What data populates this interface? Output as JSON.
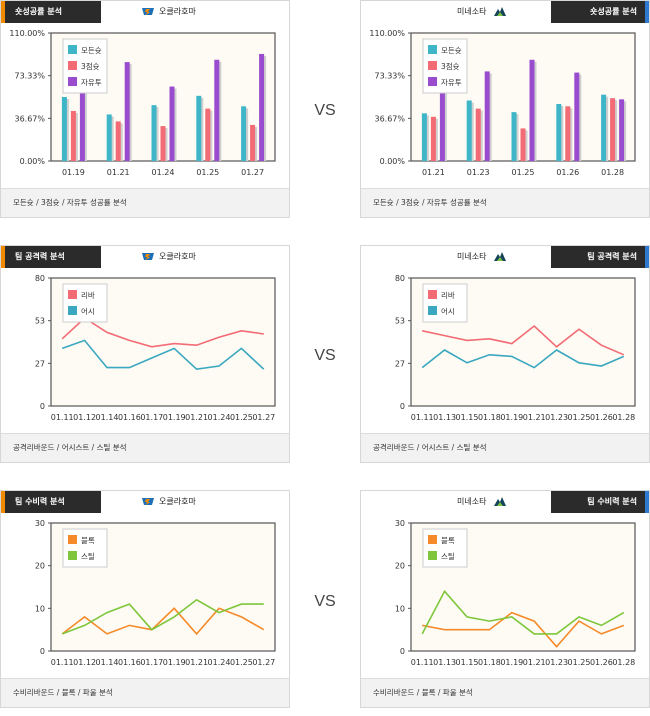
{
  "vs_label": "VS",
  "sections": [
    {
      "kind": "bar",
      "left": {
        "tab": "숏성공률 분석",
        "team": "오클라호마",
        "footer": "모든슛 / 3점슛 / 자유투 성공률 분석",
        "bar_color": "#f08a00",
        "logo": "thunder-logo-icon"
      },
      "right": {
        "tab": "숏성공률 분석",
        "team": "미네소타",
        "footer": "모든슛 / 3점슛 / 자유투 성공률 분석",
        "bar_color": "#2f7ad1",
        "logo": "timberwolves-logo-icon"
      }
    },
    {
      "kind": "line",
      "left": {
        "tab": "팀 공격력 분석",
        "team": "오클라호마",
        "footer": "공격리바운드 / 어시스트 / 스틸 분석",
        "bar_color": "#f08a00",
        "logo": "thunder-logo-icon"
      },
      "right": {
        "tab": "팀 공격력 분석",
        "team": "미네소타",
        "footer": "공격리바운드 / 어시스트 / 스틸 분석",
        "bar_color": "#2f7ad1",
        "logo": "timberwolves-logo-icon"
      }
    },
    {
      "kind": "line",
      "left": {
        "tab": "팀 수비력 분석",
        "team": "오클라호마",
        "footer": "수비리바운드 / 블록 / 파울 분석",
        "bar_color": "#f08a00",
        "logo": "thunder-logo-icon"
      },
      "right": {
        "tab": "팀 수비력 분석",
        "team": "미네소타",
        "footer": "수비리바운드 / 블록 / 파울 분석",
        "bar_color": "#2f7ad1",
        "logo": "timberwolves-logo-icon"
      }
    }
  ],
  "chart_data": [
    {
      "type": "bar",
      "panel": "okc-shooting",
      "categories": [
        "01.19",
        "01.21",
        "01.24",
        "01.25",
        "01.27"
      ],
      "yticks": [
        "0.00%",
        "36.67%",
        "73.33%",
        "110.00%"
      ],
      "ylim": [
        0,
        110
      ],
      "series": [
        {
          "name": "모든슛",
          "color": "#3fb5c8",
          "values": [
            55,
            40,
            48,
            56,
            47
          ]
        },
        {
          "name": "3점슛",
          "color": "#f26b75",
          "values": [
            43,
            34,
            30,
            45,
            31
          ]
        },
        {
          "name": "자유투",
          "color": "#9a4ccf",
          "values": [
            86,
            85,
            64,
            87,
            92
          ]
        }
      ],
      "legend": "top-left",
      "grid": false
    },
    {
      "type": "bar",
      "panel": "min-shooting",
      "categories": [
        "01.21",
        "01.23",
        "01.25",
        "01.26",
        "01.28"
      ],
      "yticks": [
        "0.00%",
        "36.67%",
        "73.33%",
        "110.00%"
      ],
      "ylim": [
        0,
        110
      ],
      "series": [
        {
          "name": "모든슛",
          "color": "#3fb5c8",
          "values": [
            41,
            52,
            42,
            49,
            57
          ]
        },
        {
          "name": "3점슛",
          "color": "#f26b75",
          "values": [
            38,
            45,
            28,
            47,
            54
          ]
        },
        {
          "name": "자유투",
          "color": "#9a4ccf",
          "values": [
            76,
            77,
            87,
            76,
            53
          ]
        }
      ],
      "legend": "top-left",
      "grid": false
    },
    {
      "type": "line",
      "panel": "okc-offense",
      "categories": [
        "01.11",
        "01.12",
        "01.14",
        "01.16",
        "01.17",
        "01.19",
        "01.21",
        "01.24",
        "01.25",
        "01.27"
      ],
      "yticks": [
        "0",
        "27",
        "53",
        "80"
      ],
      "ylim": [
        0,
        80
      ],
      "series": [
        {
          "name": "리바",
          "color": "#f26b75",
          "values": [
            42,
            55,
            46,
            41,
            37,
            39,
            38,
            43,
            47,
            45
          ]
        },
        {
          "name": "어시",
          "color": "#3aa7c0",
          "values": [
            36,
            41,
            24,
            24,
            30,
            36,
            23,
            25,
            36,
            23
          ]
        }
      ],
      "legend": "top-left",
      "grid": false
    },
    {
      "type": "line",
      "panel": "min-offense",
      "categories": [
        "01.11",
        "01.13",
        "01.15",
        "01.18",
        "01.19",
        "01.21",
        "01.23",
        "01.25",
        "01.26",
        "01.28"
      ],
      "yticks": [
        "0",
        "27",
        "53",
        "80"
      ],
      "ylim": [
        0,
        80
      ],
      "series": [
        {
          "name": "리바",
          "color": "#f26b75",
          "values": [
            47,
            44,
            41,
            42,
            39,
            50,
            37,
            48,
            38,
            32
          ]
        },
        {
          "name": "어시",
          "color": "#3aa7c0",
          "values": [
            24,
            35,
            27,
            32,
            31,
            24,
            35,
            27,
            25,
            31
          ]
        }
      ],
      "legend": "top-left",
      "grid": false
    },
    {
      "type": "line",
      "panel": "okc-defense",
      "categories": [
        "01.11",
        "01.12",
        "01.14",
        "01.16",
        "01.17",
        "01.19",
        "01.21",
        "01.24",
        "01.25",
        "01.27"
      ],
      "yticks": [
        "0",
        "10",
        "20",
        "30"
      ],
      "ylim": [
        0,
        30
      ],
      "series": [
        {
          "name": "블록",
          "color": "#f58a2a",
          "values": [
            4,
            8,
            4,
            6,
            5,
            10,
            4,
            10,
            8,
            5
          ]
        },
        {
          "name": "스틸",
          "color": "#7ec63c",
          "values": [
            4,
            6,
            9,
            11,
            5,
            8,
            12,
            9,
            11,
            11
          ]
        }
      ],
      "legend": "top-left",
      "grid": false
    },
    {
      "type": "line",
      "panel": "min-defense",
      "categories": [
        "01.11",
        "01.13",
        "01.15",
        "01.18",
        "01.19",
        "01.21",
        "01.23",
        "01.25",
        "01.26",
        "01.28"
      ],
      "yticks": [
        "0",
        "10",
        "20",
        "30"
      ],
      "ylim": [
        0,
        30
      ],
      "series": [
        {
          "name": "블록",
          "color": "#f58a2a",
          "values": [
            6,
            5,
            5,
            5,
            9,
            7,
            1,
            7,
            4,
            6
          ]
        },
        {
          "name": "스틸",
          "color": "#7ec63c",
          "values": [
            4,
            14,
            8,
            7,
            8,
            4,
            4,
            8,
            6,
            9
          ]
        }
      ],
      "legend": "top-left",
      "grid": false
    }
  ]
}
